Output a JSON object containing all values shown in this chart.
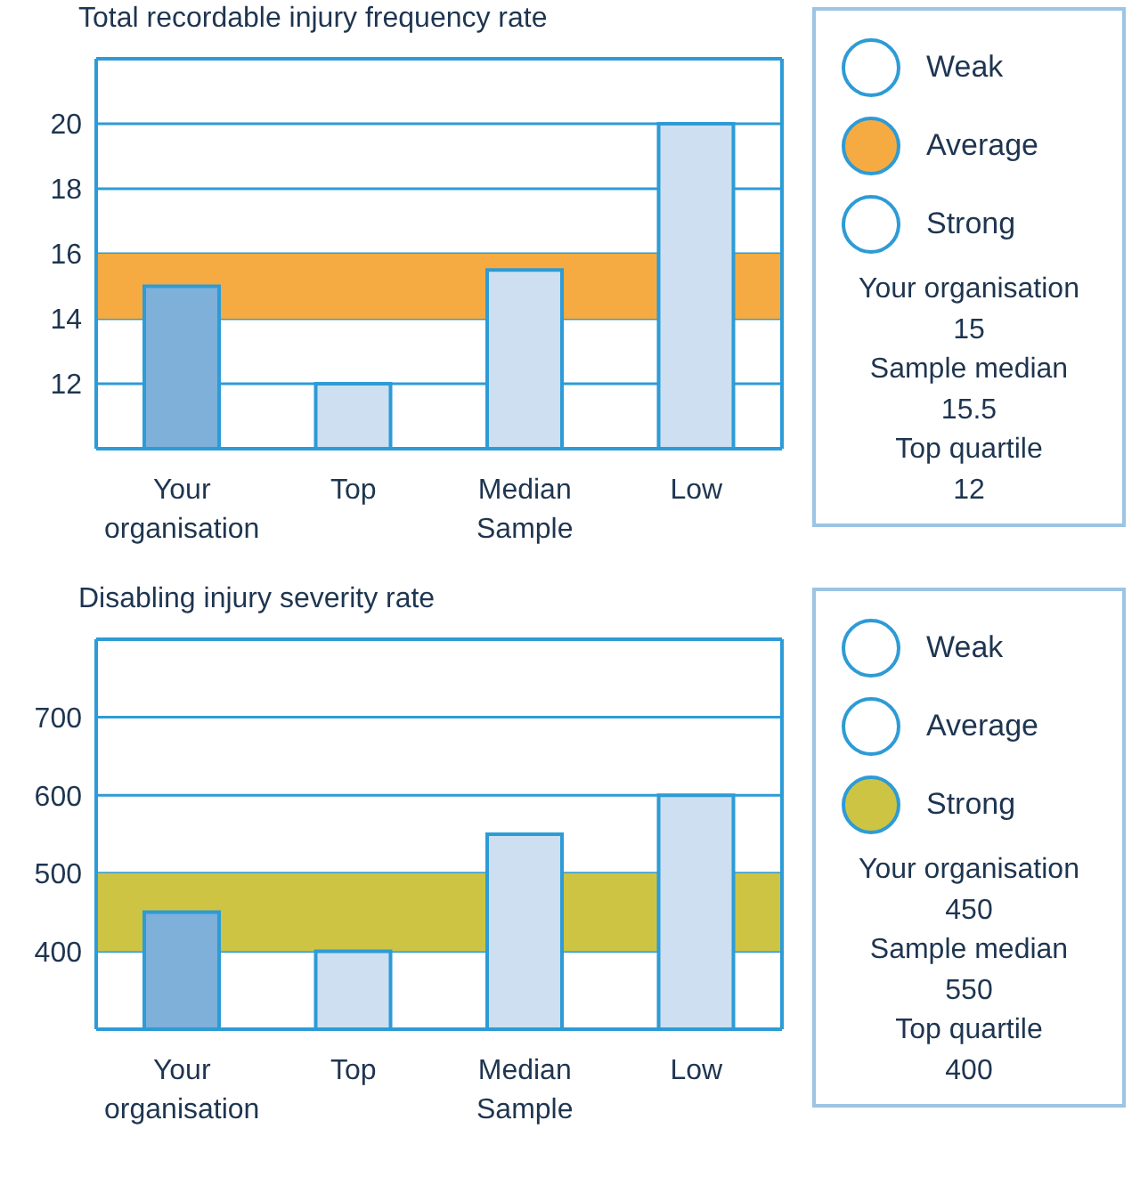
{
  "chart_data": [
    {
      "type": "bar",
      "title": "Total recordable injury frequency rate",
      "categories": [
        "Your organisation",
        "Top",
        "Median Sample",
        "Low"
      ],
      "values": [
        15,
        12,
        15.5,
        20
      ],
      "colors": [
        "#7eb0da",
        "#cddff0",
        "#cddff0",
        "#cddff0"
      ],
      "ylim": [
        10,
        22
      ],
      "yticks": [
        12,
        14,
        16,
        18,
        20
      ],
      "grid": "y",
      "bands": [
        {
          "axis": "y",
          "from": 14,
          "to": 16,
          "color": "#f5ab42"
        }
      ]
    },
    {
      "type": "other",
      "categories": [
        "Weak",
        "Average",
        "Strong"
      ],
      "colors": [
        "#ffffff",
        "#f5ab42",
        "#ffffff"
      ],
      "annotations": [
        "Your organisation",
        "15",
        "Sample median",
        "15.5",
        "Top quartile",
        "12"
      ]
    },
    {
      "type": "bar",
      "title": "Disabling injury severity rate",
      "categories": [
        "Your organisation",
        "Top",
        "Median Sample",
        "Low"
      ],
      "values": [
        450,
        400,
        550,
        600
      ],
      "colors": [
        "#7eb0da",
        "#cddff0",
        "#cddff0",
        "#cddff0"
      ],
      "ylim": [
        300,
        800
      ],
      "yticks": [
        400,
        500,
        600,
        700
      ],
      "grid": "y",
      "bands": [
        {
          "axis": "y",
          "from": 400,
          "to": 500,
          "color": "#cdc444"
        }
      ]
    },
    {
      "type": "other",
      "categories": [
        "Weak",
        "Average",
        "Strong"
      ],
      "colors": [
        "#ffffff",
        "#ffffff",
        "#cdc444"
      ],
      "annotations": [
        "Your organisation",
        "450",
        "Sample median",
        "550",
        "Top quartile",
        "400"
      ]
    }
  ]
}
